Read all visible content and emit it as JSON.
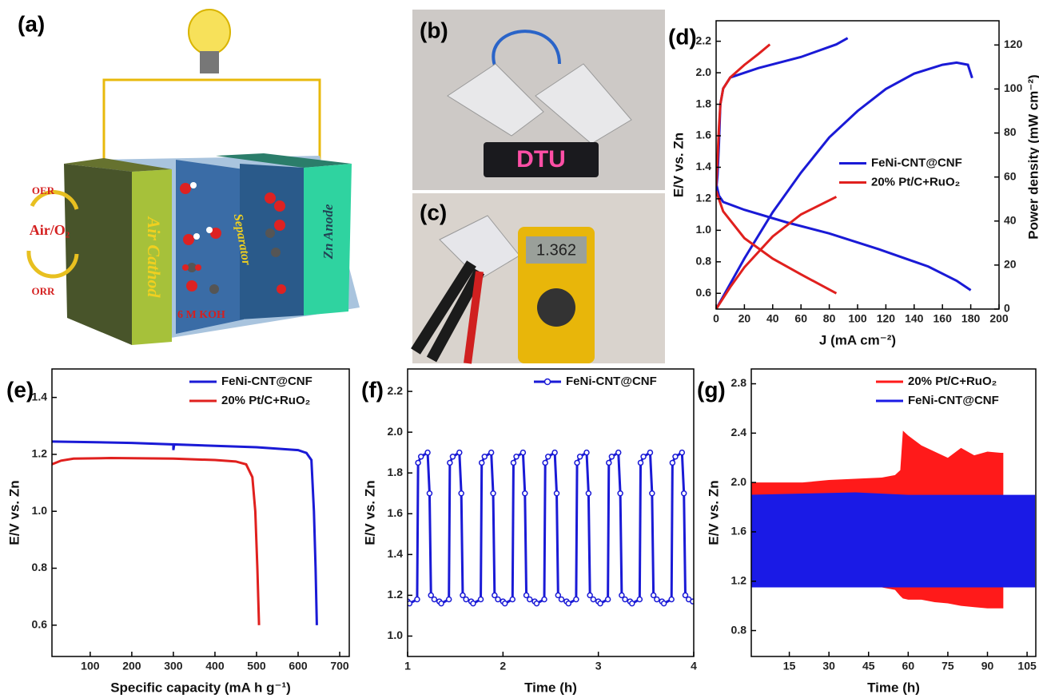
{
  "diagram": {
    "label": "(a)",
    "oer": "OER",
    "gas": "Air/O₂",
    "orr": "ORR",
    "cathode": "Air Cathod",
    "separator": "Separator",
    "anode": "Zn Anode",
    "electrolyte": "6 M KOH"
  },
  "photos": [
    {
      "label": "(b)",
      "display": "DTU"
    },
    {
      "label": "(c)",
      "display": "1.362"
    }
  ],
  "chart_data": [
    {
      "type": "line",
      "panel_label": "(d)",
      "xlabel": "J (mA cm⁻²)",
      "ylabel": "E/V vs. Zn",
      "y2label": "Power density (mW cm⁻²)",
      "xlim": [
        0,
        200
      ],
      "xticks": [
        0,
        20,
        40,
        60,
        80,
        100,
        120,
        140,
        160,
        180,
        200
      ],
      "ylim": [
        0.5,
        2.33
      ],
      "yticks": [
        0.6,
        0.8,
        {
          "value": 1,
          "label": "1.0"
        },
        1.2,
        1.4,
        1.6,
        1.8,
        {
          "value": 2,
          "label": "2.0"
        },
        2.2
      ],
      "y2lim": [
        0,
        131
      ],
      "y2ticks": [
        0,
        20,
        40,
        60,
        80,
        100,
        120
      ],
      "legend": "center right",
      "series": [
        {
          "name": "FeNi-CNT@CNF",
          "color": "#1a1ad6",
          "curves": [
            {
              "x": [
                0,
                2,
                5,
                20,
                50,
                80,
                115,
                150,
                170,
                180
              ],
              "values": [
                1.3,
                1.22,
                1.18,
                1.13,
                1.05,
                0.98,
                0.88,
                0.77,
                0.68,
                0.62
              ]
            },
            {
              "x": [
                0,
                1,
                2,
                3,
                5,
                10,
                30,
                60,
                85,
                93
              ],
              "values": [
                1.25,
                1.35,
                1.55,
                1.8,
                1.9,
                1.97,
                2.03,
                2.1,
                2.18,
                2.22
              ]
            },
            {
              "axis": "y2",
              "x": [
                0,
                20,
                40,
                60,
                80,
                100,
                120,
                140,
                160,
                170,
                178,
                181
              ],
              "values": [
                0,
                23,
                44,
                62,
                78,
                90,
                100,
                107,
                111,
                112,
                111,
                105
              ]
            }
          ]
        },
        {
          "name": "20% Pt/C+RuO₂",
          "color": "#e0201e",
          "curves": [
            {
              "x": [
                0,
                5,
                20,
                40,
                60,
                85
              ],
              "values": [
                1.25,
                1.12,
                0.95,
                0.82,
                0.72,
                0.6
              ]
            },
            {
              "x": [
                0,
                1,
                2,
                3,
                5,
                10,
                20,
                30,
                38
              ],
              "values": [
                1.28,
                1.45,
                1.65,
                1.8,
                1.9,
                1.97,
                2.05,
                2.12,
                2.18
              ]
            },
            {
              "axis": "y2",
              "x": [
                0,
                10,
                20,
                40,
                60,
                85
              ],
              "values": [
                0,
                10,
                19,
                33,
                43,
                51
              ]
            }
          ]
        }
      ]
    },
    {
      "type": "line",
      "panel_label": "(e)",
      "xlabel": "Specific capacity (mA h g⁻¹)",
      "ylabel": "E/V vs. Zn",
      "xlim": [
        8,
        723
      ],
      "xticks": [
        100,
        200,
        300,
        400,
        500,
        600,
        700
      ],
      "ylim": [
        0.49,
        1.5
      ],
      "yticks": [
        0.6,
        0.8,
        {
          "value": 1,
          "label": "1.0"
        },
        1.2,
        1.4
      ],
      "legend": "upper right",
      "series": [
        {
          "name": "FeNi-CNT@CNF",
          "color": "#1a1ad6",
          "x": [
            8,
            100,
            200,
            300,
            300,
            302,
            400,
            500,
            600,
            620,
            632,
            638,
            642,
            645
          ],
          "values": [
            1.245,
            1.243,
            1.24,
            1.235,
            1.215,
            1.235,
            1.23,
            1.225,
            1.215,
            1.205,
            1.18,
            1.0,
            0.8,
            0.6
          ]
        },
        {
          "name": "20% Pt/C+RuO₂",
          "color": "#e0201e",
          "x": [
            8,
            30,
            60,
            150,
            300,
            400,
            450,
            475,
            490,
            497,
            502,
            506
          ],
          "values": [
            1.165,
            1.178,
            1.185,
            1.187,
            1.185,
            1.18,
            1.175,
            1.165,
            1.12,
            1.0,
            0.8,
            0.6
          ]
        }
      ]
    },
    {
      "type": "line",
      "panel_label": "(f)",
      "xlabel": "Time (h)",
      "ylabel": "E/V vs. Zn",
      "xlim": [
        1,
        4
      ],
      "xticks": [
        1,
        2,
        3,
        4
      ],
      "ylim": [
        0.9,
        2.31
      ],
      "yticks": [
        {
          "value": 1,
          "label": "1.0"
        },
        1.2,
        1.4,
        1.6,
        1.8,
        {
          "value": 2,
          "label": "2.0"
        },
        2.2
      ],
      "legend": "upper right",
      "series": [
        {
          "name": "FeNi-CNT@CNF",
          "color": "#1a1ad6",
          "marker": "circle",
          "x": [
            1.0,
            1.02,
            1.1,
            1.11,
            1.14,
            1.21,
            1.23,
            1.245,
            1.28,
            1.333,
            1.353,
            1.433,
            1.443,
            1.473,
            1.543,
            1.563,
            1.578,
            1.613,
            1.667,
            1.687,
            1.767,
            1.777,
            1.807,
            1.877,
            1.897,
            1.912,
            1.947,
            2.0,
            2.02,
            2.1,
            2.11,
            2.14,
            2.21,
            2.23,
            2.245,
            2.28,
            2.333,
            2.353,
            2.433,
            2.443,
            2.473,
            2.543,
            2.563,
            2.578,
            2.613,
            2.667,
            2.687,
            2.767,
            2.777,
            2.807,
            2.877,
            2.897,
            2.912,
            2.947,
            3.0,
            3.02,
            3.1,
            3.11,
            3.14,
            3.21,
            3.23,
            3.245,
            3.28,
            3.333,
            3.353,
            3.433,
            3.443,
            3.473,
            3.543,
            3.563,
            3.578,
            3.613,
            3.667,
            3.687,
            3.767,
            3.777,
            3.807,
            3.877,
            3.897,
            3.912,
            3.947,
            3.99
          ],
          "values": [
            1.17,
            1.16,
            1.18,
            1.85,
            1.88,
            1.9,
            1.7,
            1.2,
            1.18,
            1.17,
            1.16,
            1.18,
            1.85,
            1.88,
            1.9,
            1.7,
            1.2,
            1.18,
            1.17,
            1.16,
            1.18,
            1.85,
            1.88,
            1.9,
            1.7,
            1.2,
            1.18,
            1.17,
            1.16,
            1.18,
            1.85,
            1.88,
            1.9,
            1.7,
            1.2,
            1.18,
            1.17,
            1.16,
            1.18,
            1.85,
            1.88,
            1.9,
            1.7,
            1.2,
            1.18,
            1.17,
            1.16,
            1.18,
            1.85,
            1.88,
            1.9,
            1.7,
            1.2,
            1.18,
            1.17,
            1.16,
            1.18,
            1.85,
            1.88,
            1.9,
            1.7,
            1.2,
            1.18,
            1.17,
            1.16,
            1.18,
            1.85,
            1.88,
            1.9,
            1.7,
            1.2,
            1.18,
            1.17,
            1.16,
            1.18,
            1.85,
            1.88,
            1.9,
            1.7,
            1.2,
            1.18,
            1.17
          ]
        }
      ]
    },
    {
      "type": "band",
      "panel_label": "(g)",
      "xlabel": "Time (h)",
      "ylabel": "E/V vs. Zn",
      "xlim": [
        0.6,
        108.3
      ],
      "xticks": [
        15,
        30,
        45,
        60,
        75,
        90,
        105
      ],
      "ylim": [
        0.59,
        2.92
      ],
      "yticks": [
        0.8,
        1.2,
        1.6,
        {
          "value": 2,
          "label": "2.0"
        },
        2.4,
        2.8
      ],
      "legend": "upper right",
      "series": [
        {
          "name": "20% Pt/C+RuO₂",
          "color": "#ff1a1a",
          "x": [
            0,
            10,
            20,
            30,
            40,
            50,
            55,
            57,
            58,
            60,
            65,
            70,
            75,
            80,
            85,
            90,
            95,
            96
          ],
          "upper": [
            2.0,
            2.0,
            2.0,
            2.02,
            2.03,
            2.04,
            2.06,
            2.1,
            2.42,
            2.38,
            2.3,
            2.25,
            2.2,
            2.28,
            2.22,
            2.25,
            2.24,
            2.24
          ],
          "lower": [
            1.16,
            1.16,
            1.16,
            1.15,
            1.15,
            1.15,
            1.13,
            1.08,
            1.06,
            1.05,
            1.05,
            1.03,
            1.02,
            1.0,
            0.99,
            0.98,
            0.98,
            0.98
          ]
        },
        {
          "name": "FeNi-CNT@CNF",
          "color": "#1a1ae6",
          "x": [
            0,
            20,
            40,
            60,
            80,
            100,
            108
          ],
          "upper": [
            1.9,
            1.91,
            1.92,
            1.9,
            1.9,
            1.9,
            1.9
          ],
          "lower": [
            1.15,
            1.15,
            1.15,
            1.15,
            1.15,
            1.15,
            1.15
          ]
        }
      ]
    }
  ]
}
